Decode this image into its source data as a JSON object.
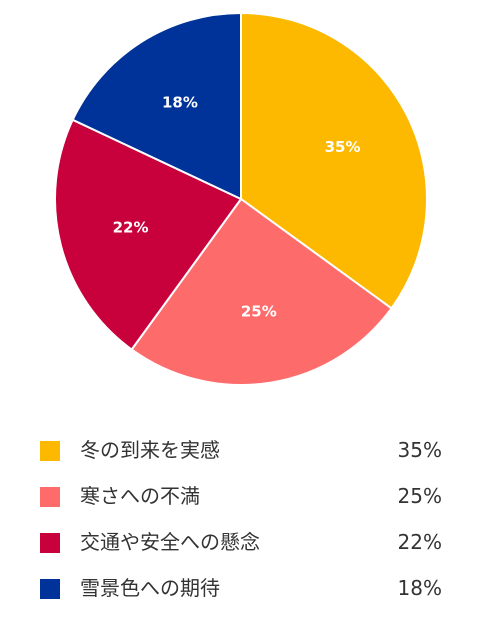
{
  "chart_data": {
    "type": "pie",
    "categories": [
      "冬の到来を実感",
      "寒さへの不満",
      "交通や安全への懸念",
      "雪景色への期待"
    ],
    "values": [
      35,
      25,
      22,
      18
    ],
    "value_labels": [
      "35%",
      "25%",
      "22%",
      "18%"
    ],
    "colors": [
      "#fdb900",
      "#fd6b6b",
      "#c8003c",
      "#003399"
    ],
    "start_angle": "12 o'clock",
    "direction": "clockwise",
    "legend_position": "bottom"
  }
}
